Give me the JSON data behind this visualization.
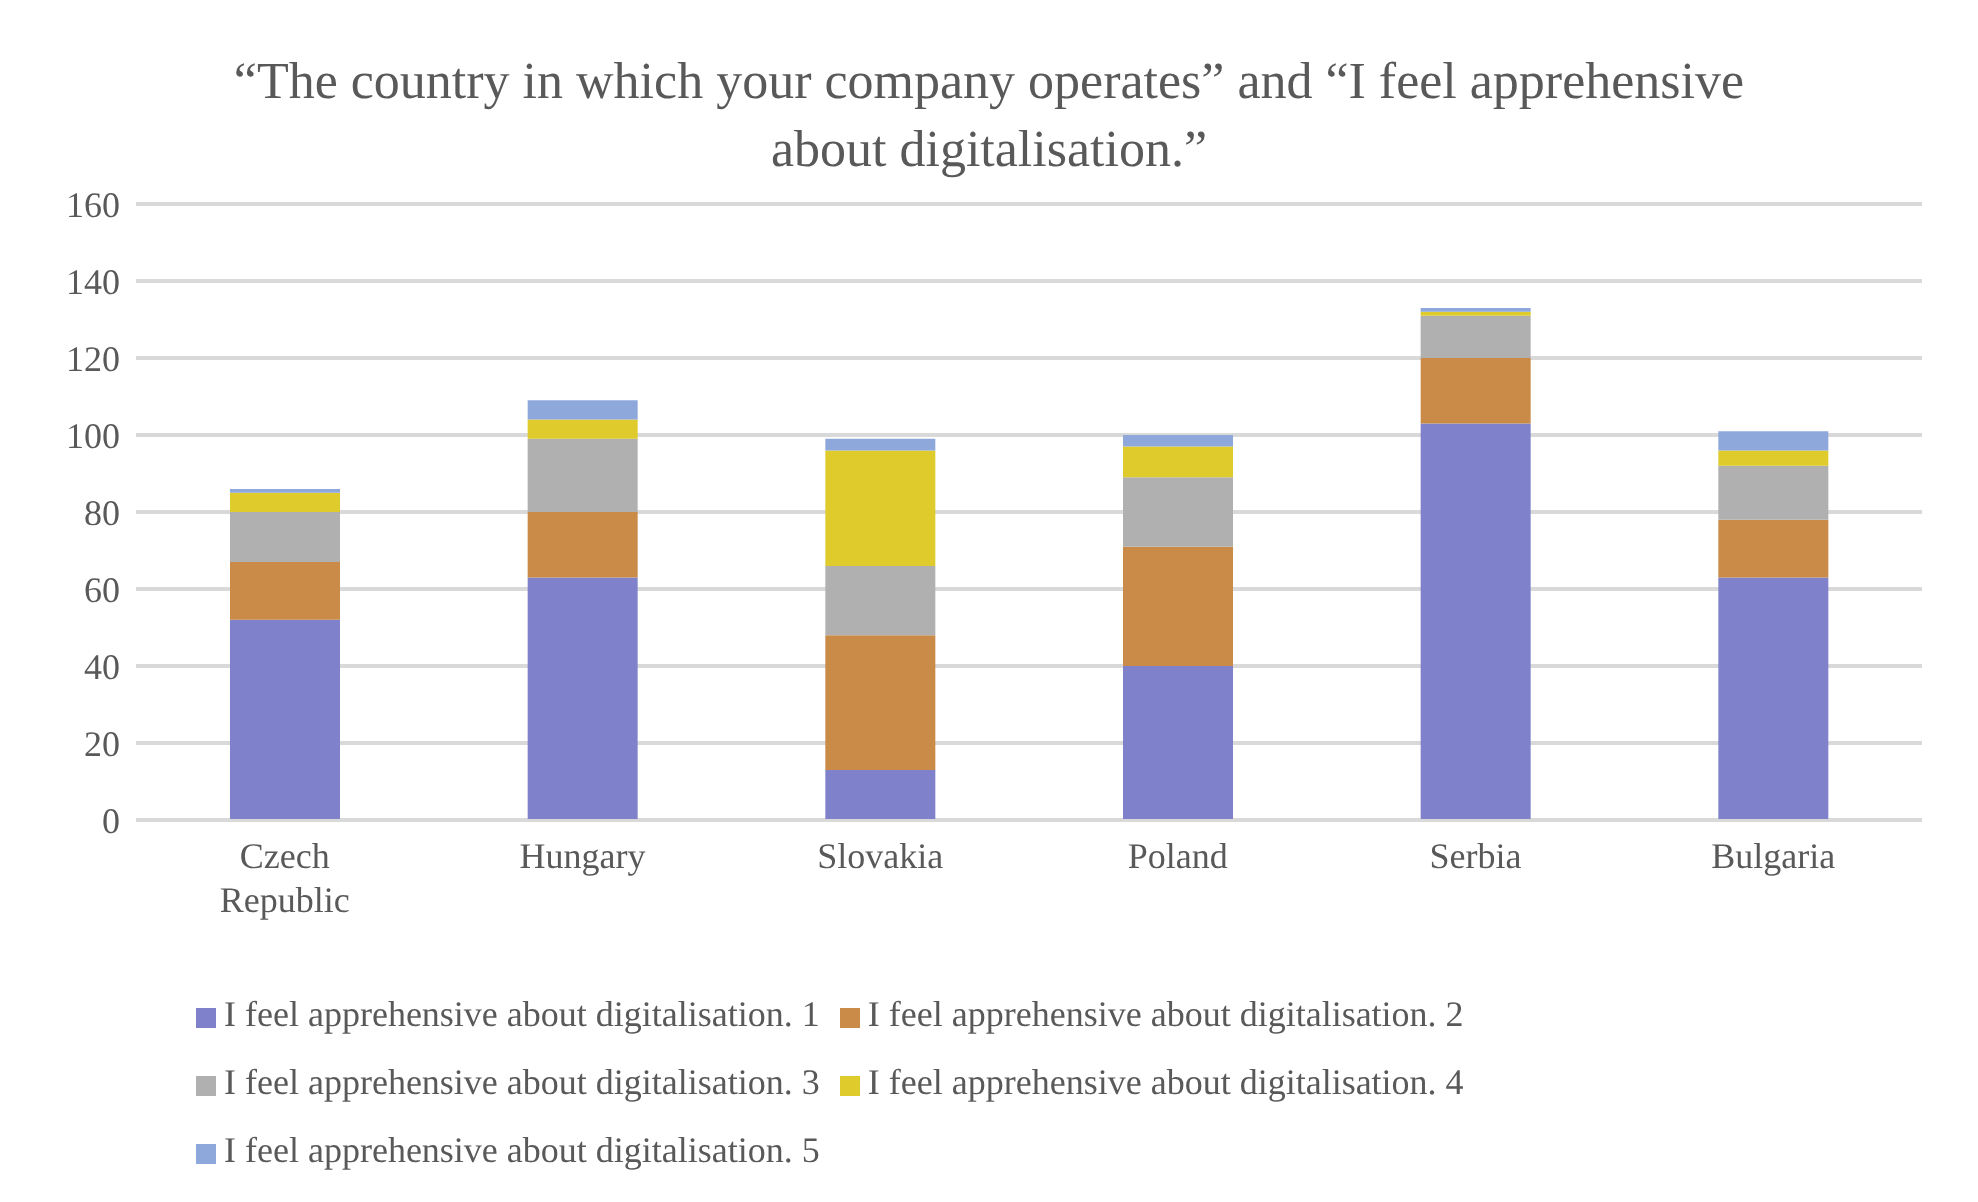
{
  "chart_data": {
    "type": "bar",
    "title": "“The country in which your company operates” and “I feel apprehensive about digitalisation.”",
    "categories": [
      "Czech Republic",
      "Hungary",
      "Slovakia",
      "Poland",
      "Serbia",
      "Bulgaria"
    ],
    "stacked": true,
    "series": [
      {
        "name": "I feel apprehensive about digitalisation. 1",
        "color": "#7f82cb",
        "values": [
          52,
          63,
          13,
          40,
          103,
          63
        ]
      },
      {
        "name": "I feel apprehensive about digitalisation. 2",
        "color": "#c98b47",
        "values": [
          15,
          17,
          35,
          31,
          17,
          15
        ]
      },
      {
        "name": "I feel apprehensive about digitalisation. 3",
        "color": "#b0b0b0",
        "values": [
          13,
          19,
          18,
          18,
          11,
          14
        ]
      },
      {
        "name": "I feel apprehensive about digitalisation. 4",
        "color": "#dfcb2c",
        "values": [
          5,
          5,
          30,
          8,
          1,
          4
        ]
      },
      {
        "name": "I feel apprehensive about digitalisation. 5",
        "color": "#8fa8dc",
        "values": [
          1,
          5,
          3,
          3,
          1,
          5
        ]
      }
    ],
    "ylim": [
      0,
      160
    ],
    "yticks": [
      0,
      20,
      40,
      60,
      80,
      100,
      120,
      140,
      160
    ],
    "grid": "y",
    "legend": "bottom"
  }
}
